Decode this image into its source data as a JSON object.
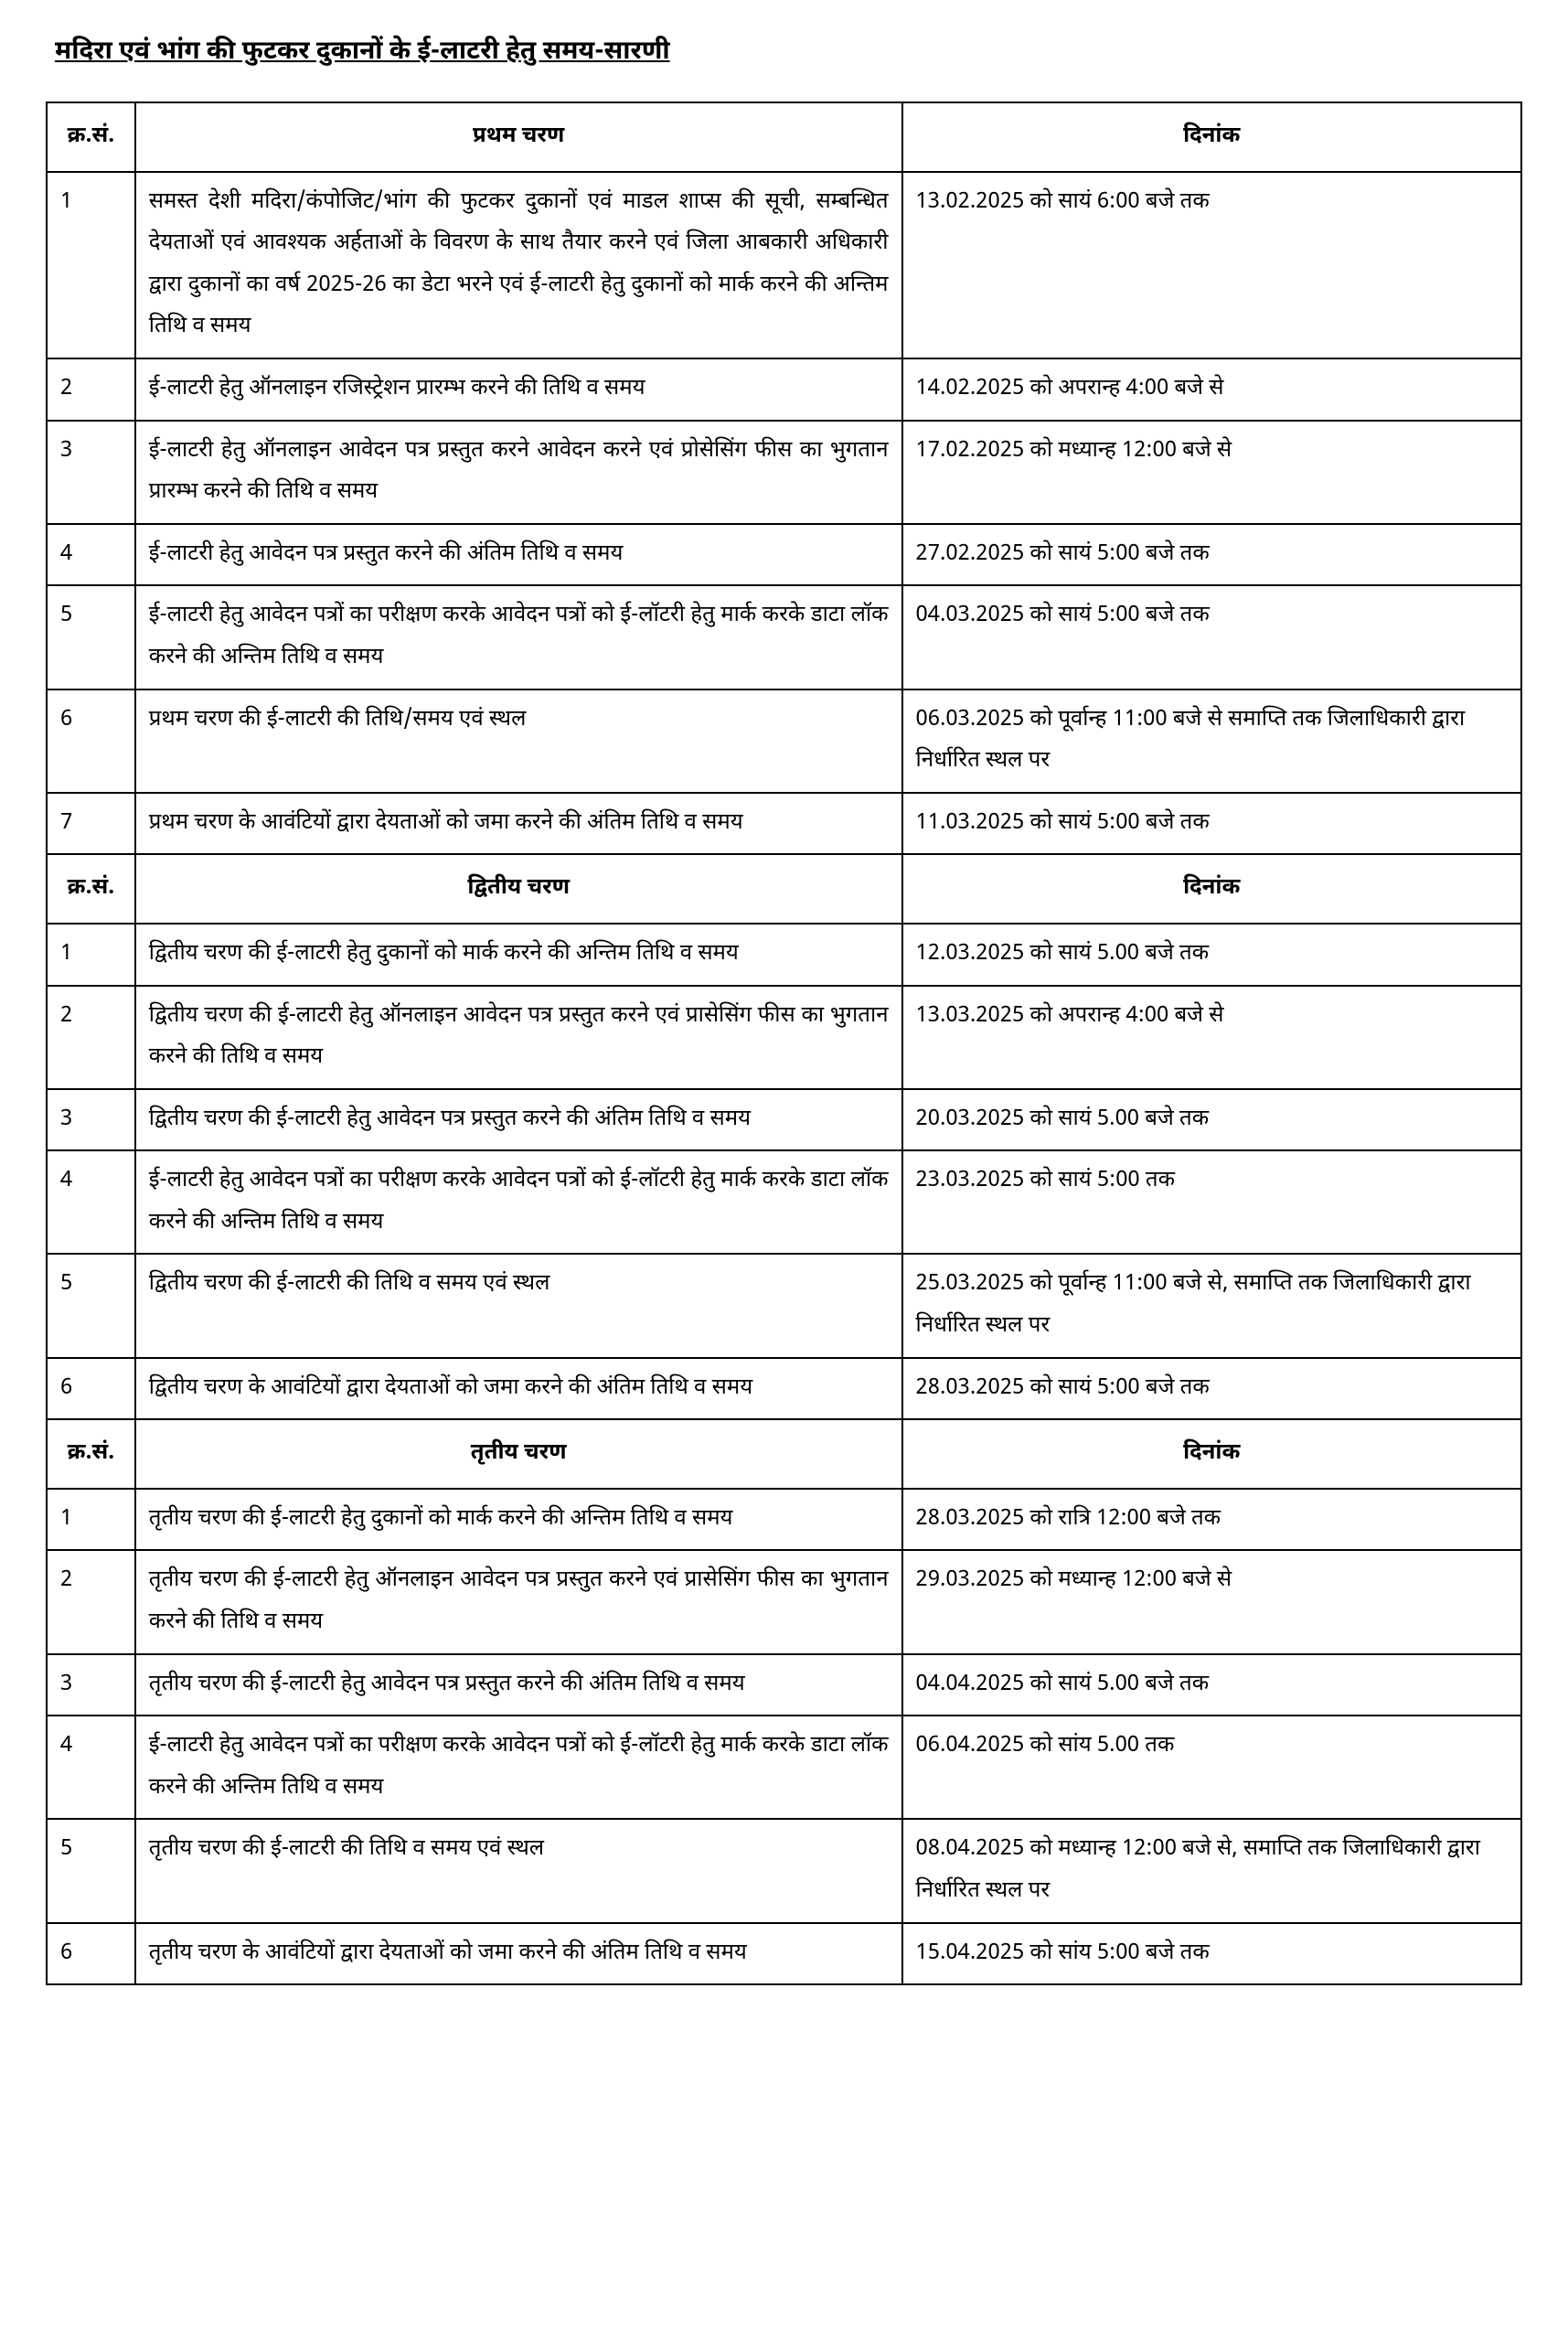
{
  "title": "मदिरा एवं भांग की फुटकर दुकानों के ई-लाटरी हेतु समय-सारणी",
  "columns": {
    "sn": "क्र.सं.",
    "date": "दिनांक"
  },
  "phases": [
    {
      "name": "प्रथम चरण",
      "rows": [
        {
          "sn": "1",
          "desc": "समस्त देशी मदिरा/कंपोजिट/भांग की फुटकर दुकानों एवं माडल शाप्स की सूची, सम्बन्धित देयताओं एवं आवश्यक अर्हताओं के विवरण के साथ तैयार करने एवं जिला आबकारी अधिकारी द्वारा दुकानों का वर्ष 2025-26 का डेटा भरने एवं ई-लाटरी हेतु दुकानों को मार्क करने की अन्तिम तिथि व समय",
          "date": "13.02.2025 को सायं 6:00 बजे तक"
        },
        {
          "sn": "2",
          "desc": "ई-लाटरी हेतु ऑनलाइन रजिस्ट्रेशन प्रारम्भ करने की तिथि व समय",
          "date": "14.02.2025 को अपरान्ह 4:00 बजे से"
        },
        {
          "sn": "3",
          "desc": "ई-लाटरी हेतु ऑनलाइन आवेदन पत्र प्रस्तुत करने आवेदन करने एवं प्रोसेसिंग फीस का भुगतान प्रारम्भ करने की तिथि व समय",
          "date": "17.02.2025 को मध्यान्ह 12:00 बजे से"
        },
        {
          "sn": "4",
          "desc": "ई-लाटरी हेतु आवेदन पत्र प्रस्तुत करने की अंतिम तिथि व समय",
          "date": "27.02.2025 को सायं 5:00 बजे तक"
        },
        {
          "sn": "5",
          "desc": "ई-लाटरी हेतु आवेदन पत्रों का परीक्षण करके आवेदन पत्रों को ई-लॉटरी हेतु मार्क करके डाटा लॉक करने की अन्तिम तिथि व समय",
          "date": "04.03.2025 को सायं 5:00 बजे तक"
        },
        {
          "sn": "6",
          "desc": "प्रथम चरण की ई-लाटरी की तिथि/समय एवं स्थल",
          "date": "06.03.2025 को पूर्वान्ह 11:00 बजे से समाप्ति तक जिलाधिकारी द्वारा निर्धारित स्थल पर"
        },
        {
          "sn": "7",
          "desc": "प्रथम चरण के आवंटियों द्वारा देयताओं को जमा करने की अंतिम तिथि व समय",
          "date": "11.03.2025 को सायं 5:00 बजे तक"
        }
      ]
    },
    {
      "name": "द्वितीय चरण",
      "rows": [
        {
          "sn": "1",
          "desc": "द्वितीय चरण की ई-लाटरी हेतु दुकानों को मार्क करने की अन्तिम तिथि व समय",
          "date": "12.03.2025 को सायं 5.00 बजे तक"
        },
        {
          "sn": "2",
          "desc": "द्वितीय चरण की ई-लाटरी हेतु ऑनलाइन आवेदन पत्र प्रस्तुत करने एवं प्रासेसिंग फीस का भुगतान करने की तिथि व समय",
          "date": "13.03.2025 को अपरान्ह 4:00 बजे से"
        },
        {
          "sn": "3",
          "desc": "द्वितीय चरण की ई-लाटरी हेतु आवेदन पत्र प्रस्तुत करने की अंतिम तिथि व समय",
          "date": "20.03.2025 को सायं 5.00 बजे तक"
        },
        {
          "sn": "4",
          "desc": "ई-लाटरी हेतु आवेदन पत्रों का परीक्षण करके आवेदन पत्रों को ई-लॉटरी हेतु मार्क करके डाटा लॉक करने की अन्तिम तिथि व समय",
          "date": "23.03.2025 को सायं 5:00 तक"
        },
        {
          "sn": "5",
          "desc": "द्वितीय चरण की ई-लाटरी की तिथि व समय एवं स्थल",
          "date": "25.03.2025 को पूर्वान्ह 11:00 बजे से, समाप्ति तक जिलाधिकारी द्वारा निर्धारित स्थल पर"
        },
        {
          "sn": "6",
          "desc": "द्वितीय चरण के आवंटियों द्वारा देयताओं को जमा करने की अंतिम तिथि व समय",
          "date": "28.03.2025 को सायं 5:00 बजे तक"
        }
      ]
    },
    {
      "name": "तृतीय चरण",
      "rows": [
        {
          "sn": "1",
          "desc": "तृतीय चरण की ई-लाटरी हेतु दुकानों को मार्क करने की अन्तिम तिथि व समय",
          "date": "28.03.2025 को रात्रि 12:00 बजे तक"
        },
        {
          "sn": "2",
          "desc": "तृतीय चरण की ई-लाटरी हेतु ऑनलाइन आवेदन पत्र प्रस्तुत करने एवं प्रासेसिंग फीस का भुगतान करने की तिथि व समय",
          "date": "29.03.2025 को मध्यान्ह 12:00 बजे से"
        },
        {
          "sn": "3",
          "desc": "तृतीय चरण की ई-लाटरी हेतु आवेदन पत्र प्रस्तुत करने की अंतिम तिथि व समय",
          "date": "04.04.2025 को सायं 5.00 बजे तक"
        },
        {
          "sn": "4",
          "desc": "ई-लाटरी हेतु आवेदन पत्रों का परीक्षण करके आवेदन पत्रों को ई-लॉटरी हेतु मार्क करके डाटा लॉक करने की अन्तिम तिथि व समय",
          "date": "06.04.2025 को सांय 5.00 तक"
        },
        {
          "sn": "5",
          "desc": "तृतीय चरण की ई-लाटरी की तिथि व समय एवं स्थल",
          "date": "08.04.2025 को मध्यान्ह 12:00 बजे से, समाप्ति तक जिलाधिकारी द्वारा निर्धारित स्थल पर"
        },
        {
          "sn": "6",
          "desc": "तृतीय चरण के आवंटियों द्वारा देयताओं को जमा करने की अंतिम तिथि व समय",
          "date": "15.04.2025 को सांय 5:00 बजे तक"
        }
      ]
    }
  ]
}
